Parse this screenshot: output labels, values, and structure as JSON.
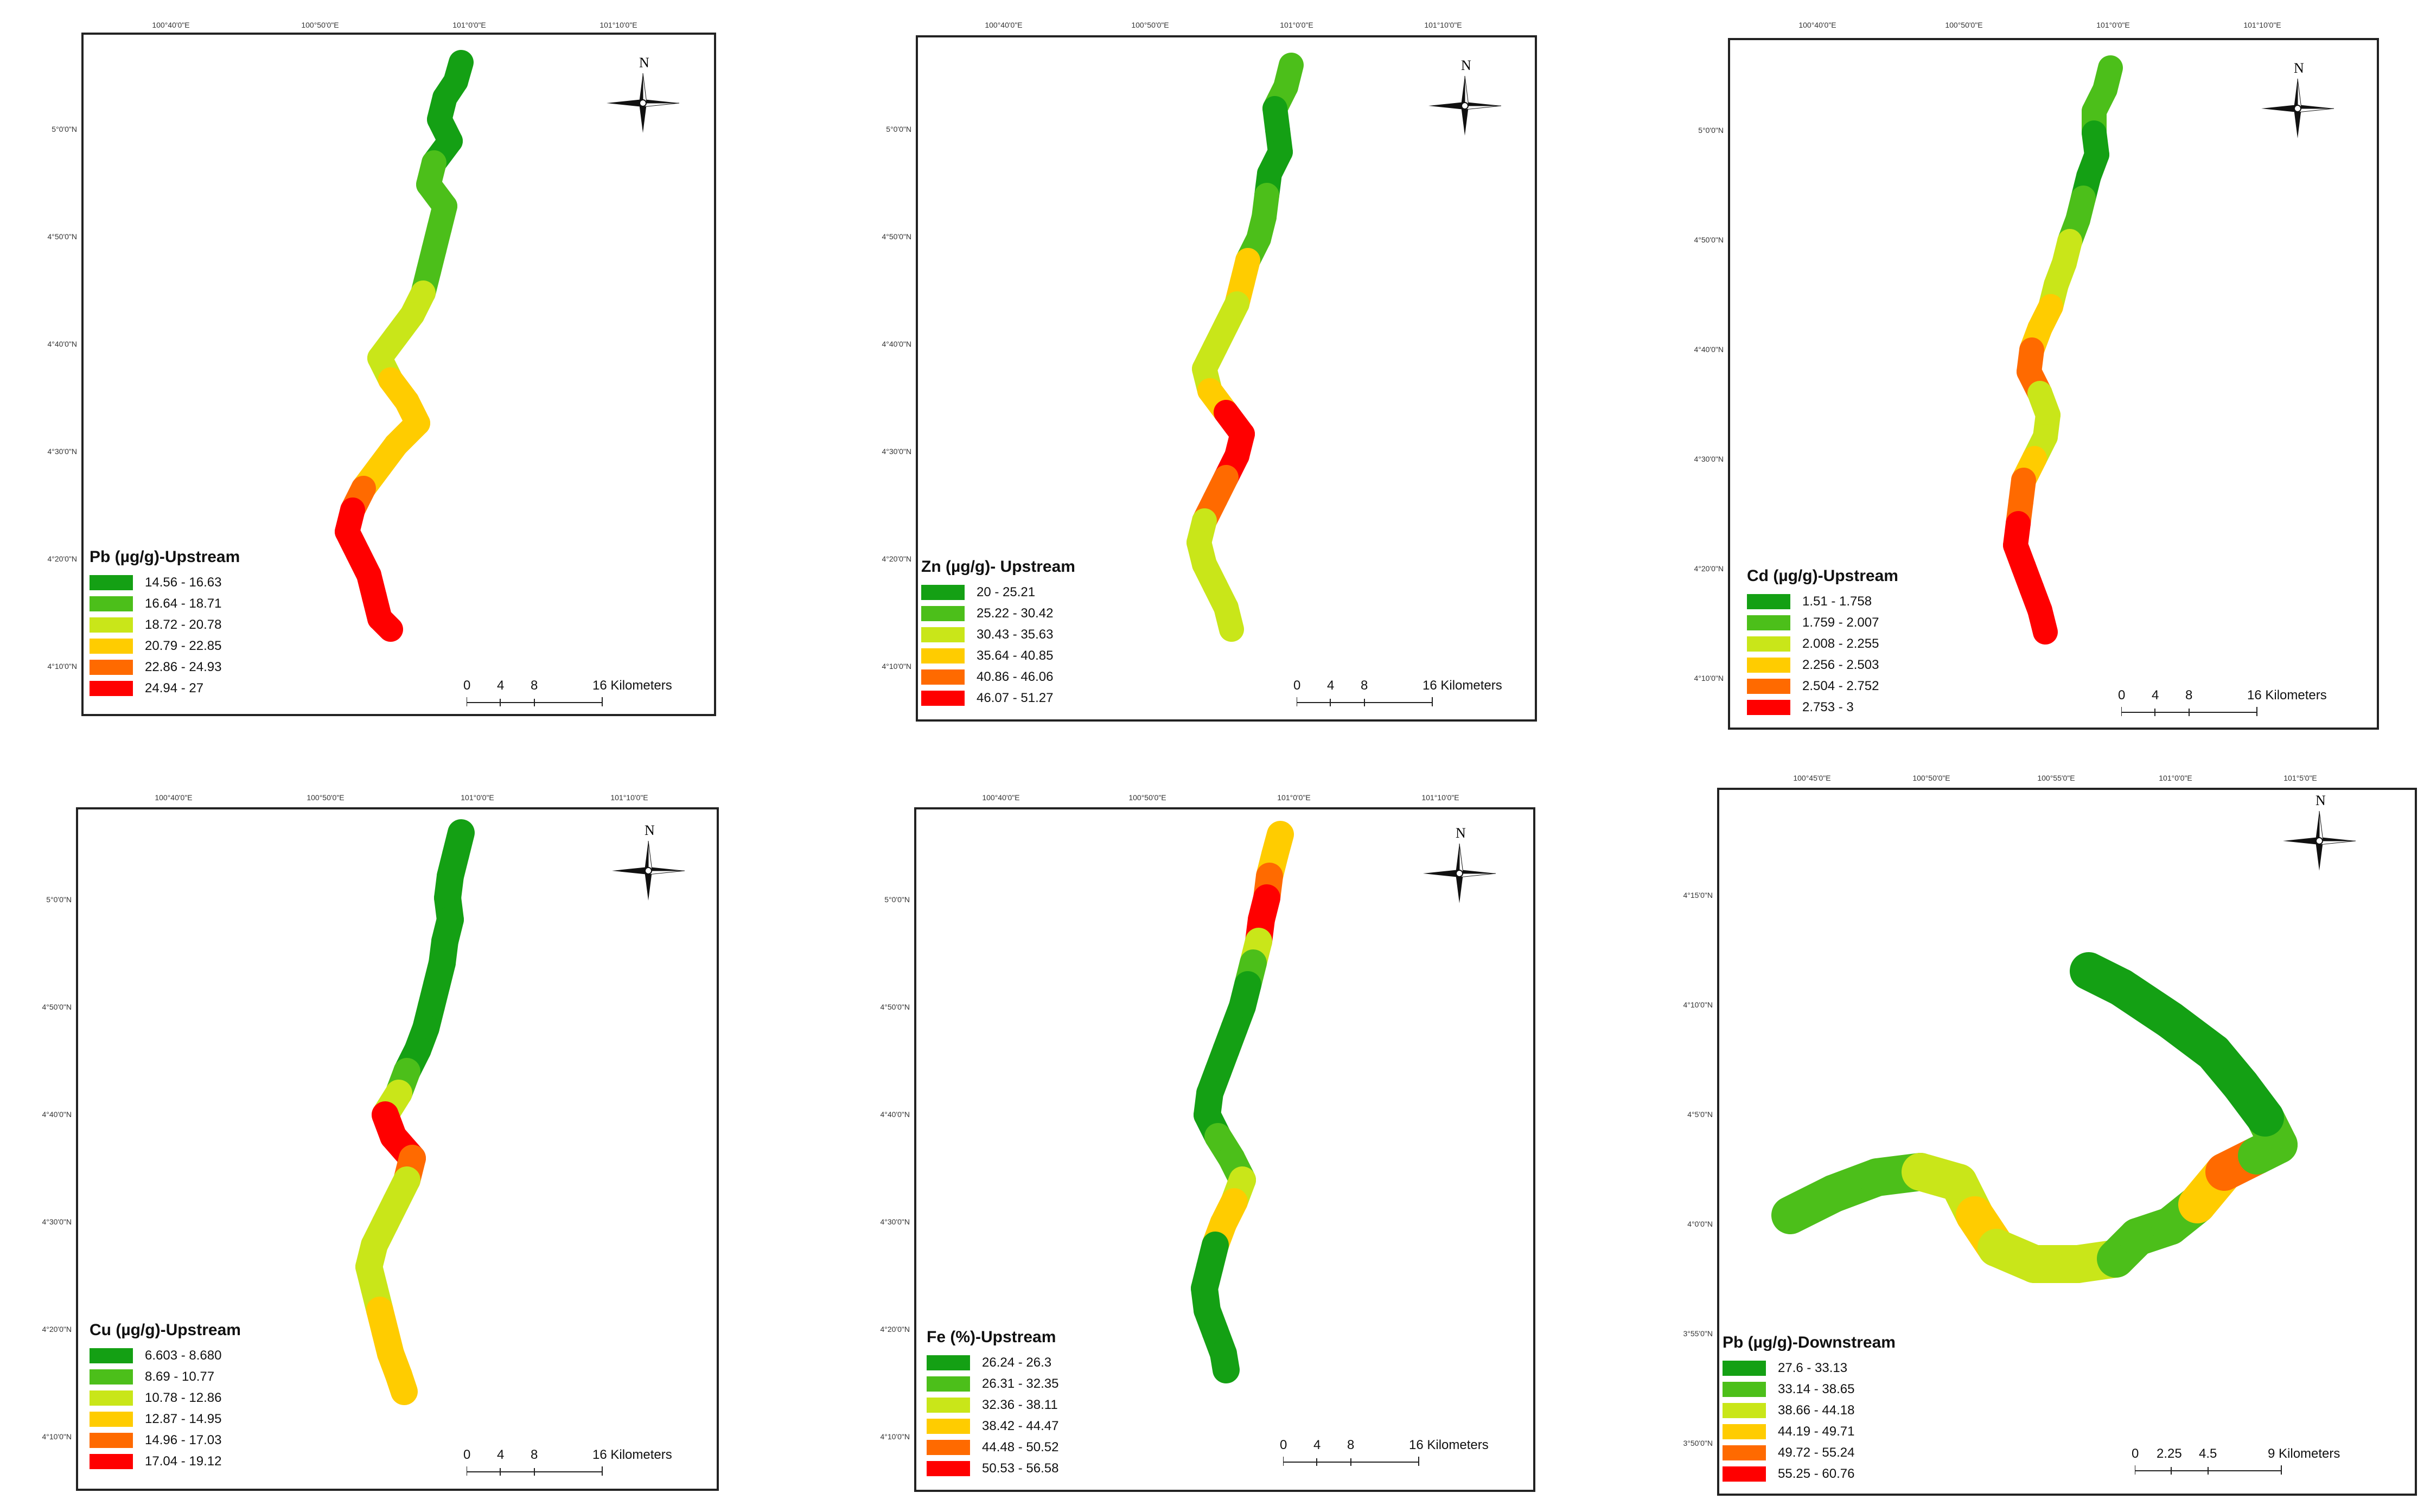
{
  "colors": {
    "class1": "#14a014",
    "class2": "#4cbf1a",
    "class3": "#c9e619",
    "class4": "#ffcc00",
    "class5": "#ff6a00",
    "class6": "#ff0000"
  },
  "north_label": "N",
  "maps": [
    {
      "id": "pb-upstream",
      "title": "Pb (µg/g)-Upstream",
      "top_ticks": [
        "100°40'0\"E",
        "100°50'0\"E",
        "101°0'0\"E",
        "101°10'0\"E"
      ],
      "left_ticks": [
        "5°0'0\"N",
        "4°50'0\"N",
        "4°40'0\"N",
        "4°30'0\"N",
        "4°20'0\"N",
        "4°10'0\"N"
      ],
      "legend": [
        "14.56 - 16.63",
        "16.64 - 18.71",
        "18.72 - 20.78",
        "20.79 - 22.85",
        "22.86 - 24.93",
        "24.94 - 27"
      ],
      "scale": {
        "numbers": [
          "0",
          "4",
          "8",
          "16 Kilometers"
        ]
      },
      "segments": [
        "class1",
        "class1",
        "class1",
        "class2",
        "class2",
        "class2",
        "class2",
        "class3",
        "class3",
        "class3",
        "class4",
        "class4",
        "class4",
        "class5",
        "class6",
        "class6",
        "class6",
        "class6"
      ]
    },
    {
      "id": "zn-upstream",
      "title": "Zn (µg/g)- Upstream",
      "top_ticks": [
        "100°40'0\"E",
        "100°50'0\"E",
        "101°0'0\"E",
        "101°10'0\"E"
      ],
      "left_ticks": [
        "5°0'0\"N",
        "4°50'0\"N",
        "4°40'0\"N",
        "4°30'0\"N",
        "4°20'0\"N",
        "4°10'0\"N"
      ],
      "legend": [
        "20 - 25.21",
        "25.22 - 30.42",
        "30.43 - 35.63",
        "35.64 - 40.85",
        "40.86 - 46.06",
        "46.07 - 51.27"
      ],
      "scale": {
        "numbers": [
          "0",
          "4",
          "8",
          "16 Kilometers"
        ]
      },
      "segments": [
        "class2",
        "class1",
        "class1",
        "class1",
        "class2",
        "class2",
        "class4",
        "class3",
        "class3",
        "class3",
        "class4",
        "class6",
        "class6",
        "class5",
        "class3",
        "class3",
        "class3",
        "class3"
      ]
    },
    {
      "id": "cd-upstream",
      "title": "Cd (µg/g)-Upstream",
      "top_ticks": [
        "100°40'0\"E",
        "100°50'0\"E",
        "101°0'0\"E",
        "101°10'0\"E"
      ],
      "left_ticks": [
        "5°0'0\"N",
        "4°50'0\"N",
        "4°40'0\"N",
        "4°30'0\"N",
        "4°20'0\"N",
        "4°10'0\"N"
      ],
      "legend": [
        "1.51 - 1.758",
        "1.759 - 2.007",
        "2.008 - 2.255",
        "2.256 - 2.503",
        "2.504 - 2.752",
        "2.753 - 3"
      ],
      "scale": {
        "numbers": [
          "0",
          "4",
          "8",
          "16 Kilometers"
        ]
      },
      "segments": [
        "class2",
        "class2",
        "class1",
        "class1",
        "class2",
        "class3",
        "class3",
        "class4",
        "class4",
        "class5",
        "class3",
        "class3",
        "class4",
        "class5",
        "class6",
        "class6",
        "class6",
        "class6"
      ]
    },
    {
      "id": "cu-upstream",
      "title": "Cu (µg/g)-Upstream",
      "top_ticks": [
        "100°40'0\"E",
        "100°50'0\"E",
        "101°0'0\"E",
        "101°10'0\"E"
      ],
      "left_ticks": [
        "5°0'0\"N",
        "4°50'0\"N",
        "4°40'0\"N",
        "4°30'0\"N",
        "4°20'0\"N",
        "4°10'0\"N"
      ],
      "legend": [
        "6.603 - 8.680",
        "8.69 - 10.77",
        "10.78 - 12.86",
        "12.87 - 14.95",
        "14.96 - 17.03",
        "17.04 - 19.12"
      ],
      "scale": {
        "numbers": [
          "0",
          "4",
          "8",
          "16 Kilometers"
        ]
      },
      "segments": [
        "class1",
        "class1",
        "class1",
        "class1",
        "class1",
        "class1",
        "class1",
        "class2",
        "class3",
        "class6",
        "class5",
        "class3",
        "class3",
        "class3",
        "class3",
        "class4",
        "class4",
        "class4"
      ]
    },
    {
      "id": "fe-upstream",
      "title": "Fe (%)-Upstream",
      "top_ticks": [
        "100°40'0\"E",
        "100°50'0\"E",
        "101°0'0\"E",
        "101°10'0\"E"
      ],
      "left_ticks": [
        "5°0'0\"N",
        "4°50'0\"N",
        "4°40'0\"N",
        "4°30'0\"N",
        "4°20'0\"N",
        "4°10'0\"N"
      ],
      "legend": [
        "26.24 - 26.3",
        "26.31 - 32.35",
        "32.36 - 38.11",
        "38.42 - 44.47",
        "44.48 - 50.52",
        "50.53 - 56.58"
      ],
      "scale": {
        "numbers": [
          "0",
          "4",
          "8",
          "16 Kilometers"
        ]
      },
      "segments": [
        "class4",
        "class5",
        "class6",
        "class3",
        "class2",
        "class1",
        "class1",
        "class1",
        "class1",
        "class1",
        "class2",
        "class3",
        "class4",
        "class1",
        "class1",
        "class1",
        "class1",
        "class1"
      ]
    },
    {
      "id": "pb-downstream",
      "title": "Pb (µg/g)-Downstream",
      "top_ticks": [
        "100°45'0\"E",
        "100°50'0\"E",
        "100°55'0\"E",
        "101°0'0\"E",
        "101°5'0\"E"
      ],
      "left_ticks": [
        "4°15'0\"N",
        "4°10'0\"N",
        "4°5'0\"N",
        "4°0'0\"N",
        "3°55'0\"N",
        "3°50'0\"N"
      ],
      "legend": [
        "27.6 - 33.13",
        "33.14 - 38.65",
        "38.66 - 44.18",
        "44.19 - 49.71",
        "49.72 - 55.24",
        "55.25 - 60.76"
      ],
      "scale": {
        "numbers": [
          "0",
          "2.25",
          "4.5",
          "9 Kilometers"
        ]
      },
      "segments": [
        "class2",
        "class2",
        "class3",
        "class4",
        "class3",
        "class3",
        "class2",
        "class2",
        "class4",
        "class5",
        "class2",
        "class1",
        "class1",
        "class1",
        "class1"
      ]
    }
  ]
}
